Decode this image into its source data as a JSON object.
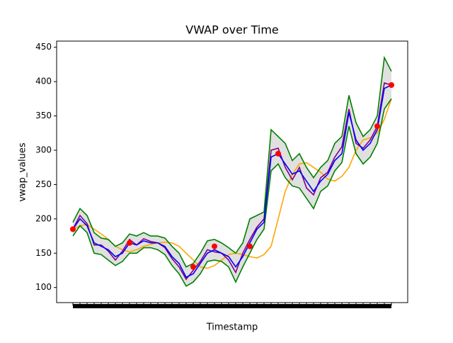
{
  "chart_data": {
    "type": "line",
    "title": "VWAP over Time",
    "x_label": "Timestamp",
    "y_label": "vwap_values",
    "categories": [
      null,
      null,
      null,
      null,
      null,
      null,
      null,
      null,
      null,
      null,
      null,
      null,
      null,
      null,
      null,
      null,
      null,
      null,
      null,
      null,
      null,
      null,
      null,
      null,
      null,
      null,
      null,
      null,
      null,
      null,
      null,
      null,
      null,
      null,
      null,
      null,
      null,
      null,
      null,
      null,
      null,
      null,
      null,
      null,
      null,
      null
    ],
    "ylim": [
      78,
      459
    ],
    "yticks": [
      100,
      150,
      200,
      250,
      300,
      350,
      400,
      450
    ],
    "band_fill": "#d3d3d3",
    "series": [
      {
        "color": "#ffa500",
        "values": [
          185,
          190,
          192,
          185,
          178,
          170,
          160,
          155,
          152,
          155,
          160,
          163,
          165,
          166,
          165,
          160,
          150,
          140,
          130,
          128,
          132,
          140,
          148,
          150,
          148,
          145,
          143,
          148,
          160,
          200,
          240,
          265,
          280,
          282,
          275,
          268,
          258,
          255,
          262,
          275,
          300,
          315,
          318,
          325,
          345,
          375
        ]
      },
      {
        "color": "#800080",
        "values": [
          185,
          205,
          193,
          162,
          162,
          153,
          140,
          153,
          170,
          162,
          171,
          167,
          165,
          158,
          142,
          130,
          112,
          125,
          138,
          155,
          152,
          150,
          140,
          122,
          150,
          170,
          188,
          200,
          300,
          303,
          275,
          257,
          275,
          245,
          235,
          260,
          268,
          290,
          305,
          360,
          310,
          303,
          315,
          335,
          398,
          395
        ]
      },
      {
        "color": "#008000",
        "values": [
          195,
          215,
          205,
          180,
          172,
          170,
          160,
          165,
          178,
          175,
          180,
          175,
          175,
          172,
          160,
          150,
          130,
          135,
          150,
          168,
          170,
          165,
          158,
          150,
          165,
          200,
          205,
          210,
          330,
          320,
          310,
          285,
          295,
          275,
          260,
          275,
          285,
          310,
          320,
          380,
          340,
          320,
          330,
          350,
          435,
          415
        ]
      },
      {
        "color": "#008000",
        "values": [
          175,
          190,
          180,
          150,
          148,
          140,
          132,
          138,
          150,
          150,
          158,
          158,
          155,
          148,
          132,
          120,
          102,
          108,
          120,
          138,
          140,
          138,
          130,
          108,
          130,
          150,
          170,
          185,
          270,
          280,
          260,
          248,
          245,
          230,
          215,
          240,
          248,
          270,
          282,
          335,
          295,
          280,
          290,
          310,
          360,
          375
        ]
      },
      {
        "color": "#0000ff",
        "values": [
          185,
          200,
          190,
          165,
          160,
          155,
          145,
          150,
          165,
          162,
          168,
          165,
          165,
          160,
          145,
          135,
          115,
          120,
          135,
          150,
          155,
          150,
          145,
          130,
          145,
          165,
          185,
          195,
          290,
          295,
          280,
          265,
          270,
          255,
          240,
          255,
          265,
          285,
          295,
          355,
          315,
          300,
          310,
          330,
          390,
          395
        ]
      },
      {
        "color": "#ff0000",
        "marker": "circle",
        "values": [
          185,
          null,
          null,
          null,
          null,
          null,
          null,
          null,
          165,
          null,
          null,
          null,
          null,
          null,
          null,
          null,
          null,
          130,
          null,
          null,
          160,
          null,
          null,
          null,
          null,
          160,
          null,
          null,
          null,
          295,
          null,
          null,
          null,
          null,
          null,
          null,
          null,
          null,
          null,
          null,
          null,
          null,
          null,
          335,
          null,
          395
        ]
      }
    ]
  }
}
